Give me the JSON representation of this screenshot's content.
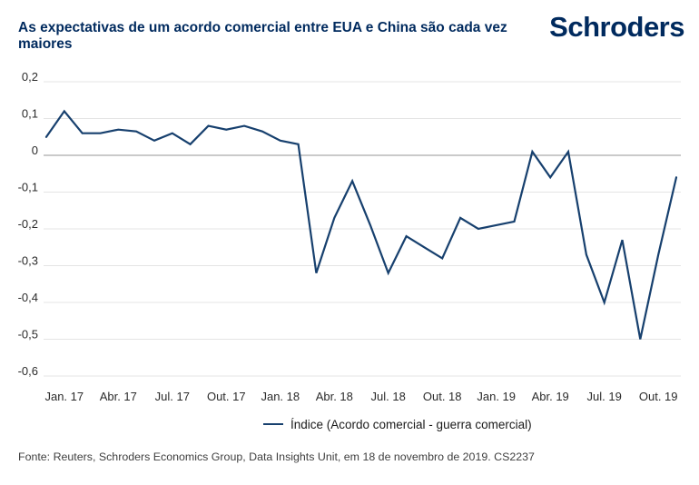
{
  "header": {
    "title": "As expectativas de um acordo comercial entre EUA e China são cada vez maiores",
    "logo_text": "Schroders"
  },
  "chart_data": {
    "type": "line",
    "title": "As expectativas de um acordo comercial entre EUA e China são cada vez maiores",
    "series_name": "Índice (Acordo comercial - guerra comercial)",
    "x_months": [
      "Dez. 16",
      "Jan. 17",
      "Fev. 17",
      "Mar. 17",
      "Abr. 17",
      "Mai. 17",
      "Jun. 17",
      "Jul. 17",
      "Ago. 17",
      "Set. 17",
      "Out. 17",
      "Nov. 17",
      "Dez. 17",
      "Jan. 18",
      "Fev. 18",
      "Mar. 18",
      "Abr. 18",
      "Mai. 18",
      "Jun. 18",
      "Jul. 18",
      "Ago. 18",
      "Set. 18",
      "Out. 18",
      "Nov. 18",
      "Dez. 18",
      "Jan. 19",
      "Fev. 19",
      "Mar. 19",
      "Abr. 19",
      "Mai. 19",
      "Jun. 19",
      "Jul. 19",
      "Ago. 19",
      "Set. 19",
      "Out. 19",
      "Nov. 19"
    ],
    "values": [
      0.05,
      0.12,
      0.06,
      0.06,
      0.07,
      0.065,
      0.04,
      0.06,
      0.03,
      0.08,
      0.07,
      0.08,
      0.065,
      0.04,
      0.03,
      -0.32,
      -0.17,
      -0.07,
      -0.19,
      -0.32,
      -0.22,
      -0.25,
      -0.28,
      -0.17,
      -0.2,
      -0.19,
      -0.18,
      0.01,
      -0.06,
      0.01,
      -0.27,
      -0.4,
      -0.23,
      -0.5,
      -0.27,
      -0.06
    ],
    "ylim": [
      -0.6,
      0.2
    ],
    "y_ticks": [
      {
        "label": "0,2",
        "value": 0.2
      },
      {
        "label": "0,1",
        "value": 0.1
      },
      {
        "label": "0",
        "value": 0.0
      },
      {
        "label": "-0,1",
        "value": -0.1
      },
      {
        "label": "-0,2",
        "value": -0.2
      },
      {
        "label": "-0,3",
        "value": -0.3
      },
      {
        "label": "-0,4",
        "value": -0.4
      },
      {
        "label": "-0,5",
        "value": -0.5
      },
      {
        "label": "-0,6",
        "value": -0.6
      }
    ],
    "x_ticks": [
      {
        "label": "Jan. 17",
        "index": 1
      },
      {
        "label": "Abr. 17",
        "index": 4
      },
      {
        "label": "Jul. 17",
        "index": 7
      },
      {
        "label": "Out. 17",
        "index": 10
      },
      {
        "label": "Jan. 18",
        "index": 13
      },
      {
        "label": "Abr. 18",
        "index": 16
      },
      {
        "label": "Jul. 18",
        "index": 19
      },
      {
        "label": "Out. 18",
        "index": 22
      },
      {
        "label": "Jan. 19",
        "index": 25
      },
      {
        "label": "Abr. 19",
        "index": 28
      },
      {
        "label": "Jul. 19",
        "index": 31
      },
      {
        "label": "Out. 19",
        "index": 34
      }
    ],
    "grid": true,
    "legend_position": "bottom-center",
    "colors": {
      "line": "#17406e",
      "gridline": "#e4e4e4",
      "zero_line": "#949494",
      "axis_text": "#2b2b2b",
      "title": "#002a5e"
    }
  },
  "legend": {
    "label": "Índice (Acordo comercial - guerra comercial)"
  },
  "footer": {
    "source": "Fonte: Reuters, Schroders Economics Group, Data Insights Unit, em 18 de novembro de 2019. CS2237"
  }
}
